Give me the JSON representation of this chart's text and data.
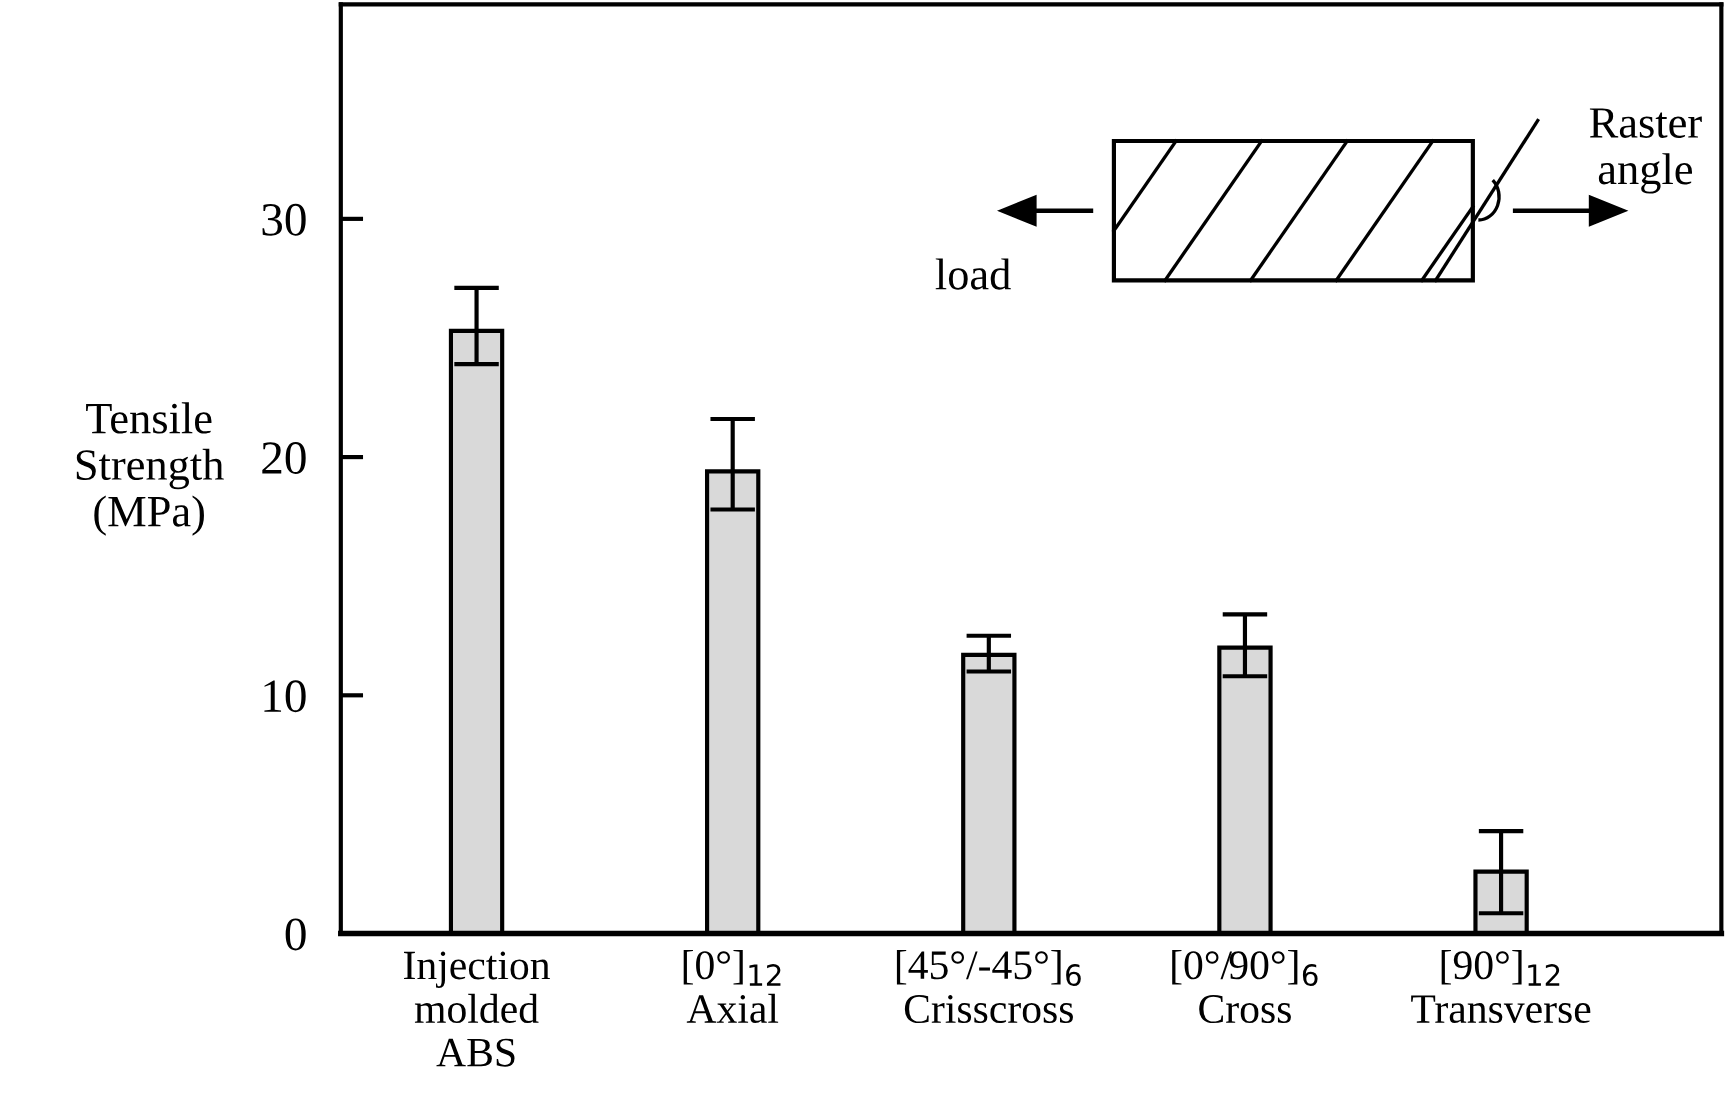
{
  "chart_data": {
    "type": "bar",
    "ylabel": "Tensile\nStrength\n(MPa)",
    "categories": [
      "Injection\nmolded\nABS",
      "[0°]$_{12}$\nAxial",
      "[45°/-45°]$_{6}$\nCrisscross",
      "[0°/90°]$_{6}$\nCross",
      "[90°]$_{12}$\nTransverse"
    ],
    "values": [
      25.3,
      19.4,
      11.7,
      12.0,
      2.6
    ],
    "errors": [
      [
        23.9,
        27.1
      ],
      [
        17.8,
        21.6
      ],
      [
        11.0,
        12.5
      ],
      [
        10.8,
        13.4
      ],
      [
        0.85,
        4.3
      ]
    ],
    "color": "#d9d9d9",
    "ylim": [
      0,
      39
    ],
    "yticks": [
      0,
      10,
      20,
      30
    ],
    "annotations": [
      "Raster\nangle",
      "load"
    ],
    "grid": false,
    "legend": false
  }
}
